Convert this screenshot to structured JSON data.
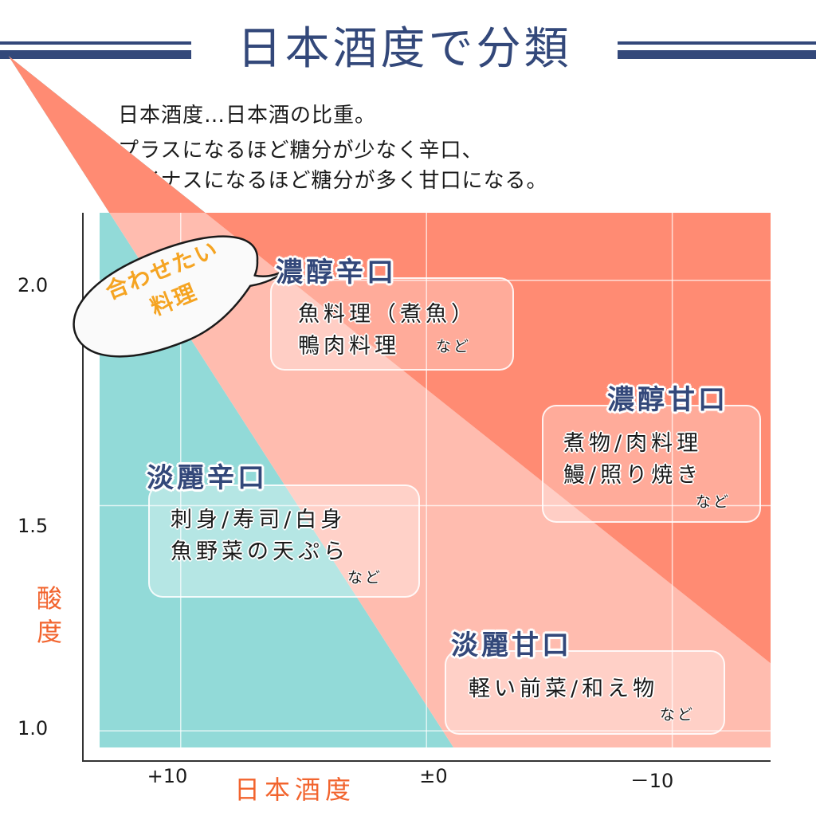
{
  "header": {
    "title": "日本酒度で分類",
    "line_color": "#33487a"
  },
  "description": {
    "line1": "日本酒度…日本酒の比重。",
    "line2": "プラスになるほど糖分が少なく辛口、",
    "line3": "マイナスになるほど糖分が多く甘口になる。"
  },
  "bubble": {
    "line1": "合わせたい",
    "line2": "料理"
  },
  "chart_data": {
    "type": "quadrant",
    "title": "日本酒度で分類",
    "xlabel": "日本酒度",
    "ylabel": "酸度",
    "x_ticks": [
      "+10",
      "±0",
      "－10"
    ],
    "x_tick_values": [
      10,
      0,
      -10
    ],
    "y_ticks": [
      "2.0",
      "1.5",
      "1.0"
    ],
    "y_tick_values": [
      2.0,
      1.5,
      1.0
    ],
    "xlim": [
      13.3,
      -14.0
    ],
    "ylim": [
      0.963,
      2.15
    ],
    "x_reversed": true,
    "grid": true,
    "colors": {
      "dry_rich": "#3fbfbb",
      "dry_light": "#92dad8",
      "sweet_rich": "#ff8b73",
      "sweet_light": "#ffbcaf",
      "title": "#33487a",
      "axis_label": "#f2642e"
    },
    "regions": [
      {
        "name": "濃醇辛口",
        "foods": [
          "魚料理（煮魚）",
          "鴨肉料理"
        ],
        "note": "など"
      },
      {
        "name": "濃醇甘口",
        "foods": [
          "煮物/肉料理",
          "鰻/照り焼き"
        ],
        "note": "など"
      },
      {
        "name": "淡麗辛口",
        "foods": [
          "刺身/寿司/白身",
          "魚野菜の天ぷら"
        ],
        "note": "など"
      },
      {
        "name": "淡麗甘口",
        "foods": [
          "軽い前菜/和え物"
        ],
        "note": "など"
      }
    ],
    "dividers": [
      {
        "name": "dry-sweet-divider",
        "from": [
          12.9,
          2.15
        ],
        "to": [
          -1.1,
          0.963
        ]
      },
      {
        "name": "rich-light-divider",
        "from": [
          9.0,
          2.15
        ],
        "to": [
          -14.0,
          1.15
        ]
      }
    ]
  }
}
